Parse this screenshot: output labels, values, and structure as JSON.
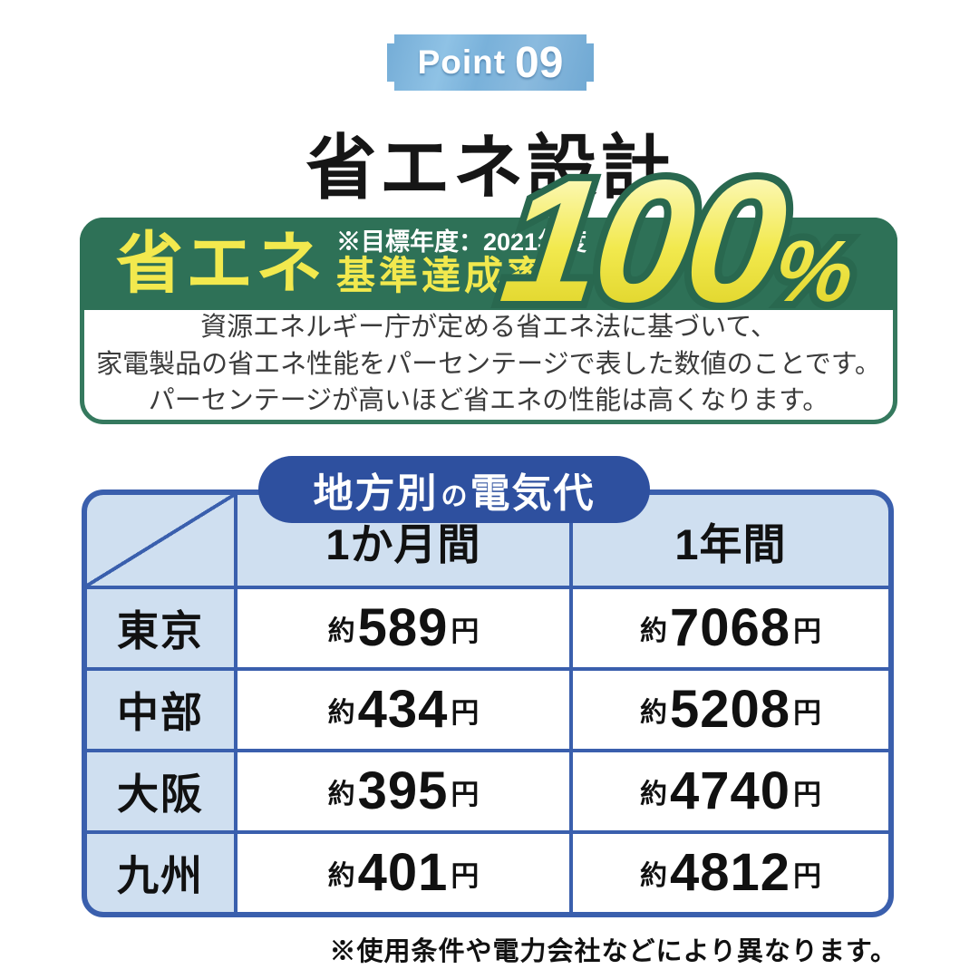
{
  "badge": {
    "word": "Point",
    "number": "09"
  },
  "page_title": "省エネ設計",
  "banner": {
    "main_label": "省エネ",
    "note": "※目標年度：2021年度",
    "sub_label": "基準達成率",
    "value": "100",
    "unit": "%",
    "description_lines": [
      "資源エネルギー庁が定める省エネ法に基づいて、",
      "家電製品の省エネ性能をパーセンテージで表した数値のことです。",
      "パーセンテージが高いほど省エネの性能は高くなります。"
    ]
  },
  "table": {
    "title_parts": [
      "地方別",
      "の",
      "電気代"
    ],
    "col_headers": [
      "1か月間",
      "1年間"
    ],
    "approx_prefix": "約",
    "yen_suffix": "円",
    "rows": [
      {
        "region": "東京",
        "month": "589",
        "year": "7068"
      },
      {
        "region": "中部",
        "month": "434",
        "year": "5208"
      },
      {
        "region": "大阪",
        "month": "395",
        "year": "4740"
      },
      {
        "region": "九州",
        "month": "401",
        "year": "4812"
      }
    ]
  },
  "footnote": "※使用条件や電力会社などにより異なります。",
  "colors": {
    "badge_blue": "#7cb3da",
    "banner_green": "#2e7157",
    "accent_yellow": "#f2e94e",
    "pill_blue": "#2e509f",
    "table_border_blue": "#3a5fad",
    "table_light_blue": "#cfdff0"
  }
}
